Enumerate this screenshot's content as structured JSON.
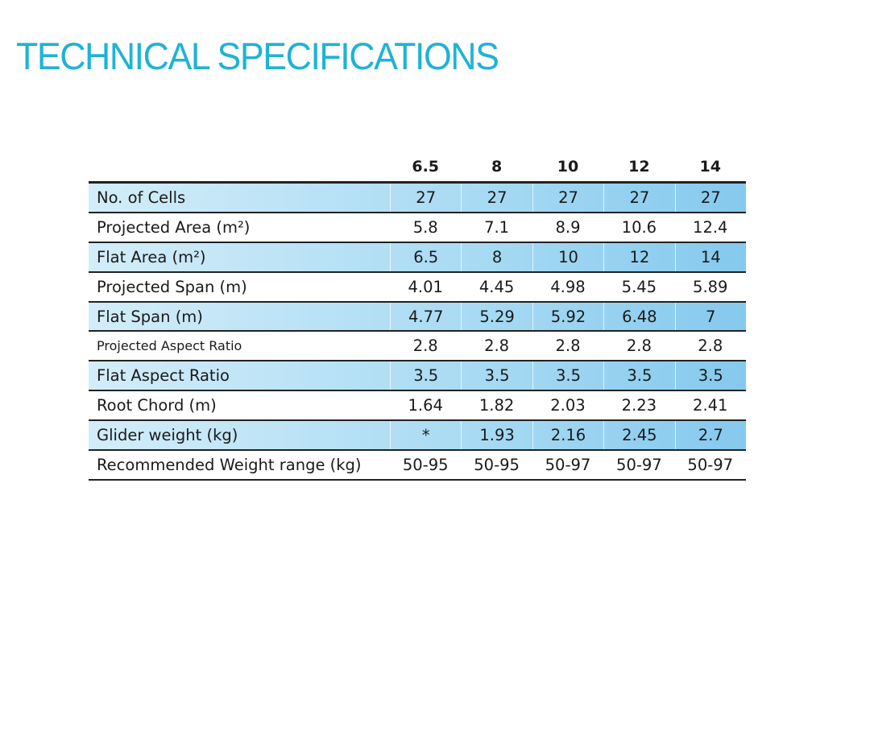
{
  "header": {
    "title": "TECHNICAL SPECIFICATIONS"
  },
  "table": {
    "columns": [
      "6.5",
      "8",
      "10",
      "12",
      "14"
    ],
    "rows": [
      {
        "label": "No. of Cells",
        "cells": [
          "27",
          "27",
          "27",
          "27",
          "27"
        ]
      },
      {
        "label": "Projected Area (m²)",
        "cells": [
          "5.8",
          "7.1",
          "8.9",
          "10.6",
          "12.4"
        ]
      },
      {
        "label": "Flat Area (m²)",
        "cells": [
          "6.5",
          "8",
          "10",
          "12",
          "14"
        ]
      },
      {
        "label": "Projected Span (m)",
        "cells": [
          "4.01",
          "4.45",
          "4.98",
          "5.45",
          "5.89"
        ]
      },
      {
        "label": "Flat Span (m)",
        "cells": [
          "4.77",
          "5.29",
          "5.92",
          "6.48",
          "7"
        ]
      },
      {
        "label": "Projected Aspect Ratio",
        "cells": [
          "2.8",
          "2.8",
          "2.8",
          "2.8",
          "2.8"
        ]
      },
      {
        "label": "Flat Aspect Ratio",
        "cells": [
          "3.5",
          "3.5",
          "3.5",
          "3.5",
          "3.5"
        ]
      },
      {
        "label": "Root Chord (m)",
        "cells": [
          "1.64",
          "1.82",
          "2.03",
          "2.23",
          "2.41"
        ]
      },
      {
        "label": "Glider weight (kg)",
        "cells": [
          "*",
          "1.93",
          "2.16",
          "2.45",
          "2.7"
        ]
      },
      {
        "label": "Recommended Weight range (kg)",
        "cells": [
          "50-95",
          "50-95",
          "50-97",
          "50-97",
          "50-97"
        ]
      }
    ]
  }
}
